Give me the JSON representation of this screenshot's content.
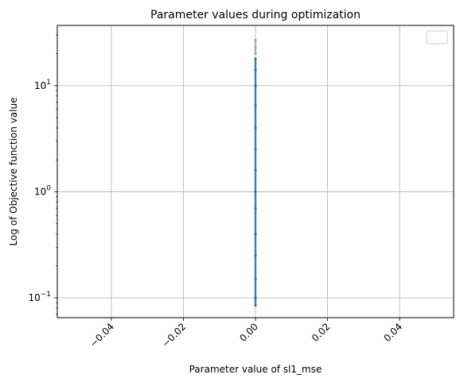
{
  "chart_data": {
    "type": "scatter",
    "title": "Parameter values during optimization",
    "xlabel": "Parameter value of sl1_mse",
    "ylabel": "Log of Objective function value",
    "xlim": [
      -0.055,
      0.055
    ],
    "ylim": [
      0.065,
      37
    ],
    "yscale": "log",
    "grid": true,
    "legend": {
      "placement": "top-right",
      "entries": []
    },
    "x_ticks": [
      {
        "value": -0.04,
        "label": "−0.04"
      },
      {
        "value": -0.02,
        "label": "−0.02"
      },
      {
        "value": 0.0,
        "label": "0.00"
      },
      {
        "value": 0.02,
        "label": "0.02"
      },
      {
        "value": 0.04,
        "label": "0.04"
      }
    ],
    "y_ticks": [
      {
        "value": 0.1,
        "base": "10",
        "exp": "−1"
      },
      {
        "value": 1,
        "base": "10",
        "exp": "0"
      },
      {
        "value": 10,
        "base": "10",
        "exp": "1"
      }
    ],
    "series": [
      {
        "color": "#1f77b4",
        "points": [
          {
            "x": 0.0,
            "y": 0.085
          },
          {
            "x": 0.0,
            "y": 0.1
          },
          {
            "x": 0.0,
            "y": 0.15
          },
          {
            "x": 0.0,
            "y": 0.25
          },
          {
            "x": 0.0,
            "y": 0.4
          },
          {
            "x": 0.0,
            "y": 0.7
          },
          {
            "x": 0.0,
            "y": 1.0
          },
          {
            "x": 0.0,
            "y": 1.6
          },
          {
            "x": 0.0,
            "y": 2.5
          },
          {
            "x": 0.0,
            "y": 4.0
          },
          {
            "x": 0.0,
            "y": 6.5
          },
          {
            "x": 0.0,
            "y": 10
          },
          {
            "x": 0.0,
            "y": 14
          },
          {
            "x": 0.0,
            "y": 18
          }
        ]
      },
      {
        "color": "#aaaaaa",
        "points": [
          {
            "x": 0.0,
            "y": 20
          },
          {
            "x": 0.0,
            "y": 23
          },
          {
            "x": 0.0,
            "y": 27
          }
        ]
      }
    ]
  }
}
